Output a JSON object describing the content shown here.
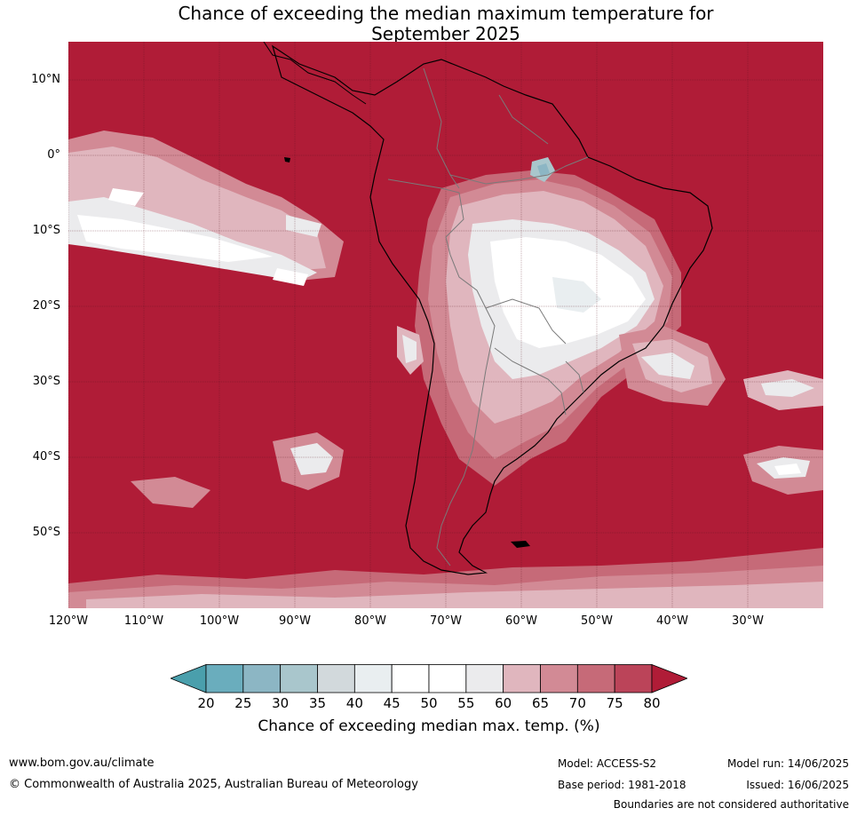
{
  "title_line1": "Chance of exceeding the median maximum temperature for",
  "title_line2": "September 2025",
  "lat_labels": [
    "10°N",
    "0°",
    "10°S",
    "20°S",
    "30°S",
    "40°S",
    "50°S"
  ],
  "lon_labels": [
    "120°W",
    "110°W",
    "100°W",
    "90°W",
    "80°W",
    "70°W",
    "60°W",
    "50°W",
    "40°W",
    "30°W"
  ],
  "colorbar": {
    "ticks": [
      "20",
      "25",
      "30",
      "35",
      "40",
      "45",
      "50",
      "55",
      "60",
      "65",
      "70",
      "75",
      "80"
    ],
    "colors": [
      "#4a9fac",
      "#6aadbd",
      "#8cb6c4",
      "#a9c6cc",
      "#d2d9dc",
      "#e9eef0",
      "#ffffff",
      "#ffffff",
      "#ebebed",
      "#e0b6be",
      "#d28a95",
      "#c66a78",
      "#bb4459",
      "#b01c37"
    ],
    "label": "Chance of exceeding median max. temp. (%)"
  },
  "colors": {
    "above_80": "#b01c37",
    "band_75_80": "#bb4459",
    "band_70_75": "#c66a78",
    "band_65_70": "#d28a95",
    "band_60_65": "#e0b6be",
    "band_55_60": "#ebebed",
    "band_45_55": "#ffffff",
    "band_40_45": "#e9eef0",
    "band_35_40": "#d2d9dc",
    "band_30_35": "#a9c6cc",
    "band_25_30": "#8cb6c4"
  },
  "footer": {
    "website": "www.bom.gov.au/climate",
    "copyright": "© Commonwealth of Australia 2025, Australian Bureau of Meteorology",
    "model": "Model: ACCESS-S2",
    "base_period": "Base period: 1981-2018",
    "model_run": "Model run: 14/06/2025",
    "issued": "Issued: 16/06/2025",
    "disclaimer": "Boundaries are not considered authoritative"
  }
}
